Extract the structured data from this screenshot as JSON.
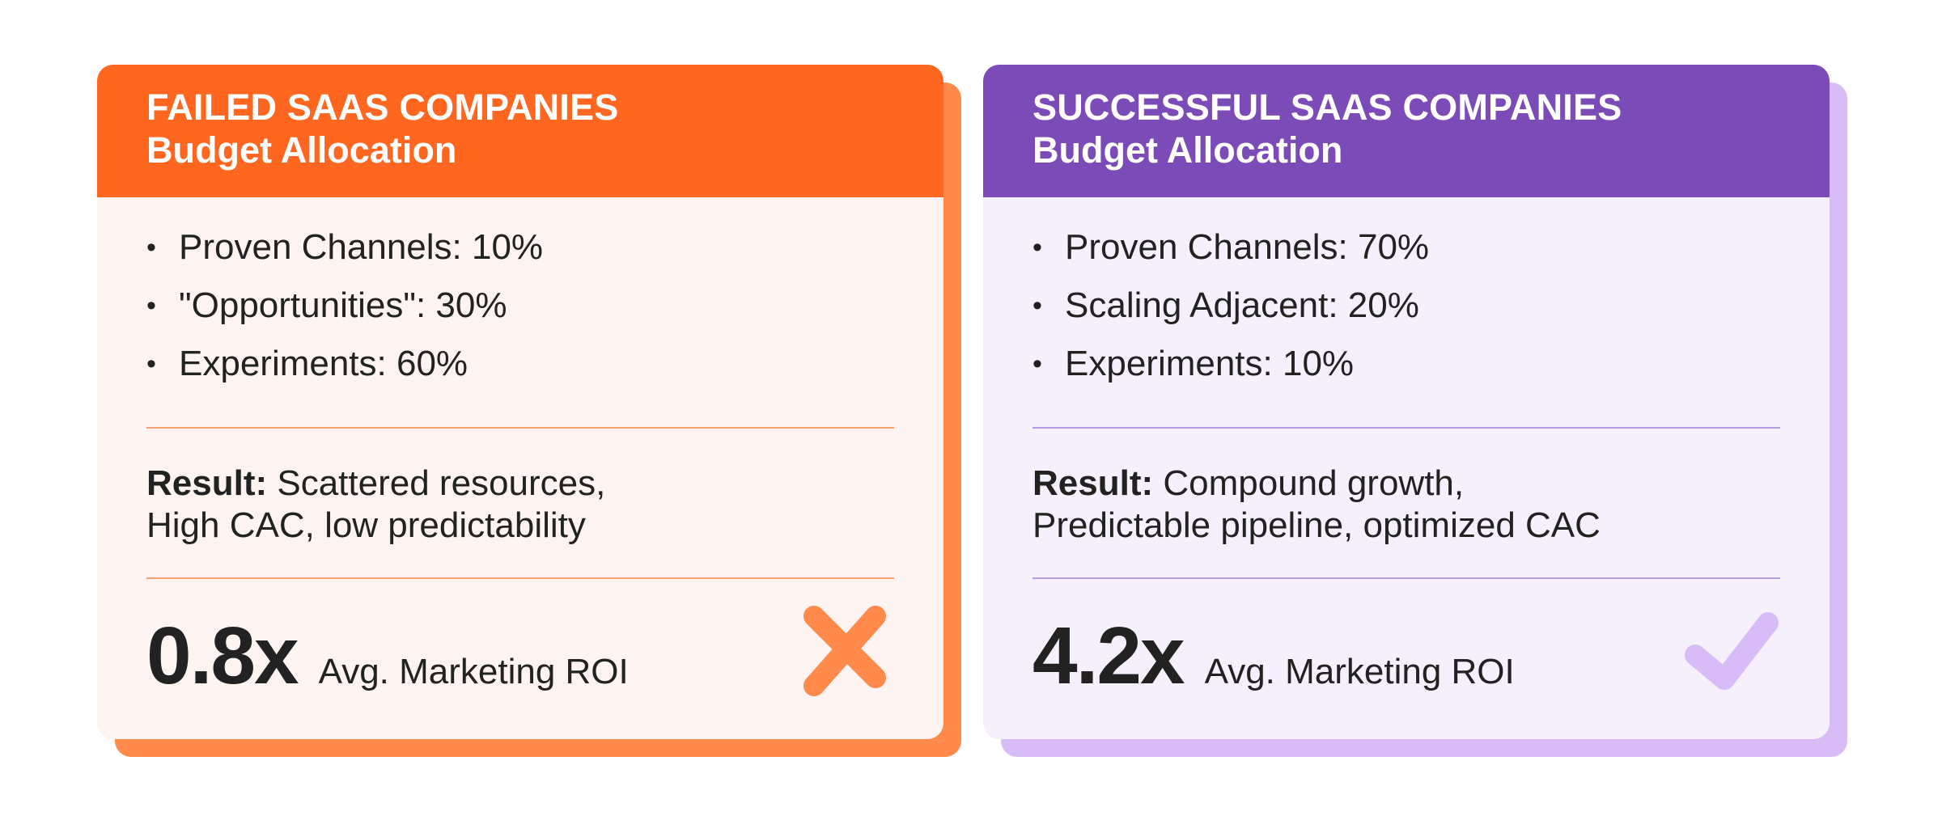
{
  "colors": {
    "failed_header": "#FF661F",
    "failed_shadow": "#FF8A4C",
    "failed_body": "#FDF4F1",
    "failed_divider": "#F7A06E",
    "success_header": "#7B4BB8",
    "success_shadow": "#D7BCF7",
    "success_body": "#F5F0FC",
    "success_divider": "#B79BE0",
    "text": "#222222"
  },
  "failed": {
    "title": "FAILED SAAS COMPANIES",
    "subtitle": "Budget Allocation",
    "bullets": [
      {
        "text": "Proven Channels: 10%"
      },
      {
        "text": "\"Opportunities\": 30%"
      },
      {
        "text": "Experiments: 60%"
      }
    ],
    "result_label": "Result:",
    "result_line1": "Scattered resources,",
    "result_line2": "High CAC, low predictability",
    "roi_value": "0.8x",
    "roi_label": "Avg. Marketing ROI",
    "icon": "x-mark-icon"
  },
  "successful": {
    "title": "SUCCESSFUL SAAS COMPANIES",
    "subtitle": "Budget Allocation",
    "bullets": [
      {
        "text": "Proven Channels: 70%"
      },
      {
        "text": "Scaling Adjacent: 20%"
      },
      {
        "text": "Experiments: 10%"
      }
    ],
    "result_label": "Result:",
    "result_line1": "Compound growth,",
    "result_line2": "Predictable pipeline, optimized CAC",
    "roi_value": "4.2x",
    "roi_label": "Avg. Marketing ROI",
    "icon": "checkmark-icon"
  }
}
